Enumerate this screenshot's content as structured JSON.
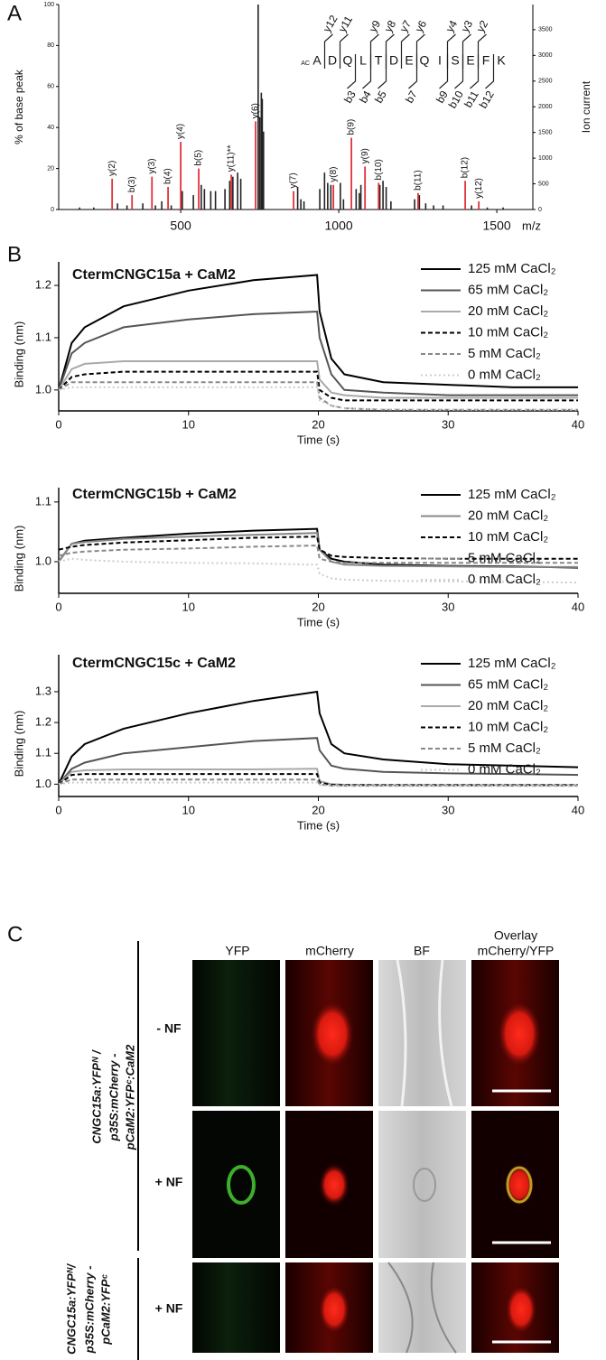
{
  "chart_data": [
    {
      "type": "bar",
      "panel_label": "A",
      "y_label": "% of base peak",
      "y2_label": "Ion current",
      "x_label": "m/z",
      "xlim": [
        114,
        1614
      ],
      "xticks": [
        500,
        1000,
        1500
      ],
      "ylim": [
        0,
        100
      ],
      "yticks": [
        0,
        20,
        40,
        60,
        80,
        100
      ],
      "y2lim": [
        0,
        3990
      ],
      "y2ticks": [
        0,
        500,
        1000,
        1500,
        2000,
        2500,
        3000,
        3500
      ],
      "peaks": {
        "color": "#222222",
        "x": [
          180,
          225,
          300,
          330,
          380,
          420,
          440,
          470,
          505,
          540,
          565,
          575,
          595,
          610,
          640,
          655,
          665,
          680,
          690,
          745,
          750,
          755,
          758,
          762,
          870,
          880,
          890,
          940,
          955,
          965,
          975,
          1005,
          1015,
          1055,
          1065,
          1070,
          1130,
          1140,
          1150,
          1165,
          1240,
          1255,
          1275,
          1300,
          1330,
          1420,
          1470,
          1520
        ],
        "values": [
          1,
          1,
          3,
          2,
          3,
          2,
          4,
          2,
          9,
          7,
          12,
          10,
          9,
          9,
          10,
          14,
          16,
          18,
          15,
          100,
          45,
          57,
          54,
          38,
          11,
          5,
          4,
          10,
          18,
          13,
          12,
          13,
          5,
          10,
          8,
          12,
          12,
          14,
          11,
          4,
          5,
          7,
          3,
          2,
          2,
          2,
          1,
          1
        ]
      },
      "labeled_peaks": {
        "color": "#e0333a",
        "x": [
          283,
          346,
          409,
          460,
          500,
          557,
          660,
          737,
          857,
          983,
          1040,
          1083,
          1126,
          1251,
          1400,
          1443
        ],
        "values": [
          15,
          7,
          16,
          11,
          33,
          20,
          17,
          43,
          9,
          12,
          35,
          21,
          13,
          8,
          14,
          4
        ],
        "labels": [
          "y(2)",
          "b(3)",
          "y(3)",
          "b(4)",
          "y(4)",
          "b(5)",
          "y(11)**",
          "y(6)",
          "y(7)",
          "y(8)",
          "b(9)",
          "y(9)",
          "b(10)",
          "b(11)",
          "b(12)",
          "y(12)"
        ]
      },
      "annotation": {
        "prefix": "AC",
        "residues": [
          "A",
          "D",
          "Q",
          "L",
          "T",
          "D",
          "E",
          "Q",
          "I",
          "S",
          "E",
          "F",
          "K"
        ],
        "y_ions": [
          "y12",
          "y11",
          "y9",
          "y8",
          "y7",
          "y6",
          "y4",
          "y3",
          "y2"
        ],
        "b_ions": [
          "b3",
          "b4",
          "b5",
          "b7",
          "b9",
          "b10",
          "b11",
          "b12"
        ]
      }
    },
    {
      "type": "line",
      "panel_label": "B",
      "title": "CtermCNGC15a + CaM2",
      "x_label": "Time (s)",
      "y_label": "Binding (nm)",
      "x": [
        0,
        1,
        2,
        5,
        10,
        15,
        19.9,
        20.1,
        21,
        22,
        25,
        30,
        35,
        40
      ],
      "xlim": [
        0,
        40
      ],
      "xticks": [
        0,
        10,
        20,
        30,
        40
      ],
      "ylim": [
        0.96,
        1.245
      ],
      "yticks": [
        {
          "value": 1,
          "label": "1.0"
        },
        1.1,
        1.2
      ],
      "series": [
        {
          "name": "125 mM CaCl₂",
          "color": "#000000",
          "dash": "solid",
          "values": [
            1.0,
            1.09,
            1.12,
            1.16,
            1.19,
            1.21,
            1.22,
            1.15,
            1.06,
            1.03,
            1.015,
            1.01,
            1.005,
            1.005
          ]
        },
        {
          "name": "65 mM CaCl₂",
          "color": "#555555",
          "dash": "solid",
          "values": [
            1.0,
            1.07,
            1.09,
            1.12,
            1.135,
            1.145,
            1.15,
            1.1,
            1.03,
            1.0,
            0.995,
            0.99,
            0.99,
            0.99
          ]
        },
        {
          "name": "20 mM CaCl₂",
          "color": "#aaaaaa",
          "dash": "solid",
          "values": [
            1.0,
            1.04,
            1.05,
            1.055,
            1.055,
            1.055,
            1.055,
            1.02,
            0.995,
            0.99,
            0.985,
            0.985,
            0.985,
            0.985
          ]
        },
        {
          "name": "10 mM CaCl₂",
          "color": "#000000",
          "dash": "dashed",
          "values": [
            1.0,
            1.025,
            1.03,
            1.035,
            1.035,
            1.035,
            1.035,
            1.0,
            0.985,
            0.98,
            0.98,
            0.98,
            0.98,
            0.98
          ]
        },
        {
          "name": "5 mM CaCl₂",
          "color": "#888888",
          "dash": "dashed",
          "values": [
            1.0,
            1.015,
            1.015,
            1.015,
            1.015,
            1.015,
            1.015,
            0.985,
            0.97,
            0.965,
            0.962,
            0.962,
            0.962,
            0.962
          ]
        },
        {
          "name": "0 mM CaCl₂",
          "color": "#cccccc",
          "dash": "dotted",
          "values": [
            1.0,
            1.005,
            1.005,
            1.005,
            1.005,
            1.005,
            1.005,
            0.98,
            0.97,
            0.965,
            0.963,
            0.962,
            0.962,
            0.962
          ]
        }
      ]
    },
    {
      "type": "line",
      "title": "CtermCNGC15b + CaM2",
      "x_label": "Time (s)",
      "y_label": "Binding (nm)",
      "x": [
        0,
        1,
        2,
        5,
        10,
        15,
        19.9,
        20.1,
        21,
        22,
        25,
        30,
        35,
        40
      ],
      "xlim": [
        0,
        40
      ],
      "xticks": [
        0,
        10,
        20,
        30,
        40
      ],
      "ylim": [
        0.947,
        1.124
      ],
      "yticks": [
        {
          "value": 1,
          "label": "1.0"
        },
        1.1
      ],
      "series": [
        {
          "name": "125 mM CaCl₂",
          "color": "#000000",
          "dash": "solid",
          "values": [
            1.0,
            1.03,
            1.035,
            1.04,
            1.047,
            1.052,
            1.055,
            1.02,
            1.005,
            1.0,
            0.995,
            0.993,
            0.992,
            0.99
          ]
        },
        {
          "name": "20 mM CaCl₂",
          "color": "#888888",
          "dash": "solid",
          "values": [
            1.0,
            1.03,
            1.033,
            1.038,
            1.042,
            1.045,
            1.048,
            1.02,
            1.0,
            0.995,
            0.993,
            0.992,
            0.991,
            0.991
          ]
        },
        {
          "name": "10 mM CaCl₂",
          "color": "#000000",
          "dash": "dashed",
          "values": [
            1.02,
            1.025,
            1.028,
            1.032,
            1.036,
            1.04,
            1.042,
            1.02,
            1.01,
            1.008,
            1.006,
            1.005,
            1.005,
            1.005
          ]
        },
        {
          "name": "5 mM CaCl₂",
          "color": "#888888",
          "dash": "dashed",
          "values": [
            1.01,
            1.015,
            1.017,
            1.02,
            1.022,
            1.025,
            1.027,
            1.005,
            1.0,
            0.998,
            0.998,
            0.998,
            0.998,
            0.998
          ]
        },
        {
          "name": "0 mM CaCl₂",
          "color": "#cccccc",
          "dash": "dotted",
          "values": [
            1.0,
            1.005,
            1.003,
            1.0,
            0.998,
            0.997,
            0.995,
            0.98,
            0.972,
            0.97,
            0.968,
            0.967,
            0.966,
            0.965
          ]
        }
      ]
    },
    {
      "type": "line",
      "title": "CtermCNGC15c + CaM2",
      "x_label": "Time (s)",
      "y_label": "Binding (nm)",
      "x": [
        0,
        1,
        2,
        5,
        10,
        15,
        19.9,
        20.1,
        21,
        22,
        25,
        30,
        35,
        40
      ],
      "xlim": [
        0,
        40
      ],
      "xticks": [
        0,
        10,
        20,
        30,
        40
      ],
      "ylim": [
        0.96,
        1.42
      ],
      "yticks": [
        {
          "value": 1,
          "label": "1.0"
        },
        1.1,
        1.2,
        1.3
      ],
      "series": [
        {
          "name": "125 mM CaCl₂",
          "color": "#000000",
          "dash": "solid",
          "values": [
            1.0,
            1.09,
            1.13,
            1.18,
            1.23,
            1.27,
            1.3,
            1.23,
            1.13,
            1.1,
            1.08,
            1.065,
            1.06,
            1.055
          ]
        },
        {
          "name": "65 mM CaCl₂",
          "color": "#555555",
          "dash": "solid",
          "values": [
            1.0,
            1.05,
            1.07,
            1.1,
            1.12,
            1.14,
            1.15,
            1.11,
            1.06,
            1.05,
            1.04,
            1.035,
            1.033,
            1.03
          ]
        },
        {
          "name": "20 mM CaCl₂",
          "color": "#aaaaaa",
          "dash": "solid",
          "values": [
            1.0,
            1.04,
            1.045,
            1.048,
            1.048,
            1.048,
            1.05,
            1.01,
            1.0,
            0.998,
            0.997,
            0.997,
            0.997,
            0.997
          ]
        },
        {
          "name": "10 mM CaCl₂",
          "color": "#000000",
          "dash": "dashed",
          "values": [
            1.0,
            1.03,
            1.033,
            1.033,
            1.033,
            1.033,
            1.033,
            1.005,
            0.998,
            0.997,
            0.997,
            0.997,
            0.997,
            0.997
          ]
        },
        {
          "name": "5 mM CaCl₂",
          "color": "#888888",
          "dash": "dashed",
          "values": [
            1.0,
            1.015,
            1.015,
            1.015,
            1.015,
            1.015,
            1.015,
            0.999,
            0.995,
            0.995,
            0.995,
            0.995,
            0.995,
            0.995
          ]
        },
        {
          "name": "0 mM CaCl₂",
          "color": "#cccccc",
          "dash": "dotted",
          "values": [
            1.0,
            1.005,
            1.005,
            1.005,
            1.005,
            1.005,
            1.005,
            0.997,
            0.995,
            0.995,
            0.995,
            0.995,
            0.995,
            0.995
          ]
        }
      ]
    }
  ],
  "panel_c": {
    "label": "C",
    "column_headers": [
      "YFP",
      "mCherry",
      "BF"
    ],
    "overlay_header": [
      "Overlay",
      "mCherry/YFP"
    ],
    "rows": [
      "- NF",
      "+ NF",
      "+ NF"
    ],
    "constructs": [
      [
        "CNGC15a:YFPᴺ /",
        "p35S:mCherry -",
        "pCaM2:YFPᶜ:CaM2"
      ],
      [
        "CNGC15a:YFPᴺ/",
        "p35S:mCherry -",
        "pCaM2:YFPᶜ"
      ]
    ]
  }
}
